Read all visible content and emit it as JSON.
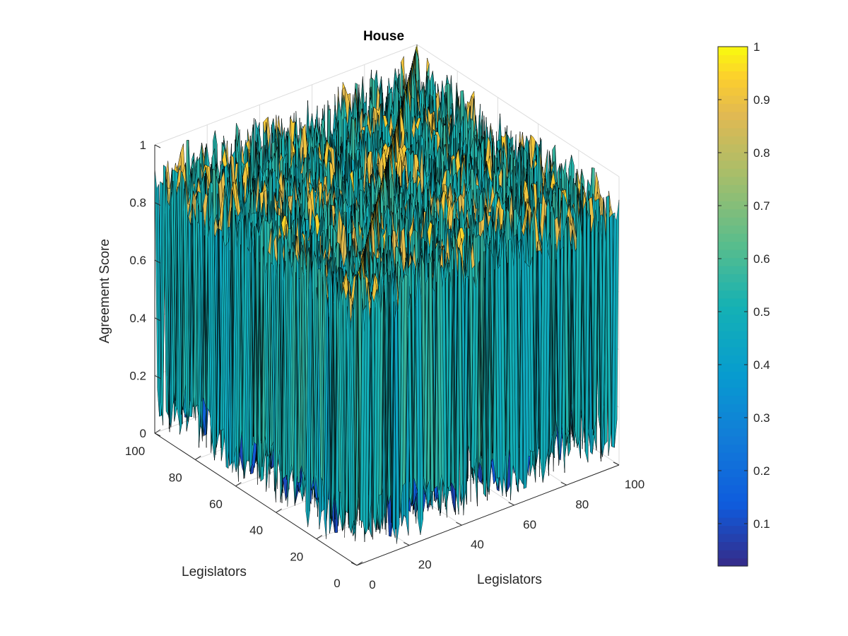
{
  "chart_data": {
    "type": "surface",
    "title": "House",
    "xlabel": "Legislators",
    "ylabel": "Legislators",
    "zlabel": "Agreement Score",
    "x_ticks": [
      "0",
      "20",
      "40",
      "60",
      "80",
      "100"
    ],
    "y_ticks": [
      "0",
      "20",
      "40",
      "60",
      "80",
      "100"
    ],
    "z_ticks": [
      "0",
      "0.2",
      "0.4",
      "0.6",
      "0.8",
      "1"
    ],
    "xlim": [
      0,
      100
    ],
    "ylim": [
      0,
      100
    ],
    "zlim": [
      0,
      1
    ],
    "grid": true,
    "colormap": "parula",
    "colorbar": {
      "position": "right",
      "ticks": [
        "0.1",
        "0.2",
        "0.3",
        "0.4",
        "0.5",
        "0.6",
        "0.7",
        "0.8",
        "0.9",
        "1"
      ],
      "range": [
        0.02,
        1
      ]
    },
    "values_summary": {
      "grid_size": [
        100,
        100
      ],
      "diagonal_value": 1,
      "typical_same_party_value": 0.9,
      "typical_cross_party_value": 0.1
    }
  }
}
